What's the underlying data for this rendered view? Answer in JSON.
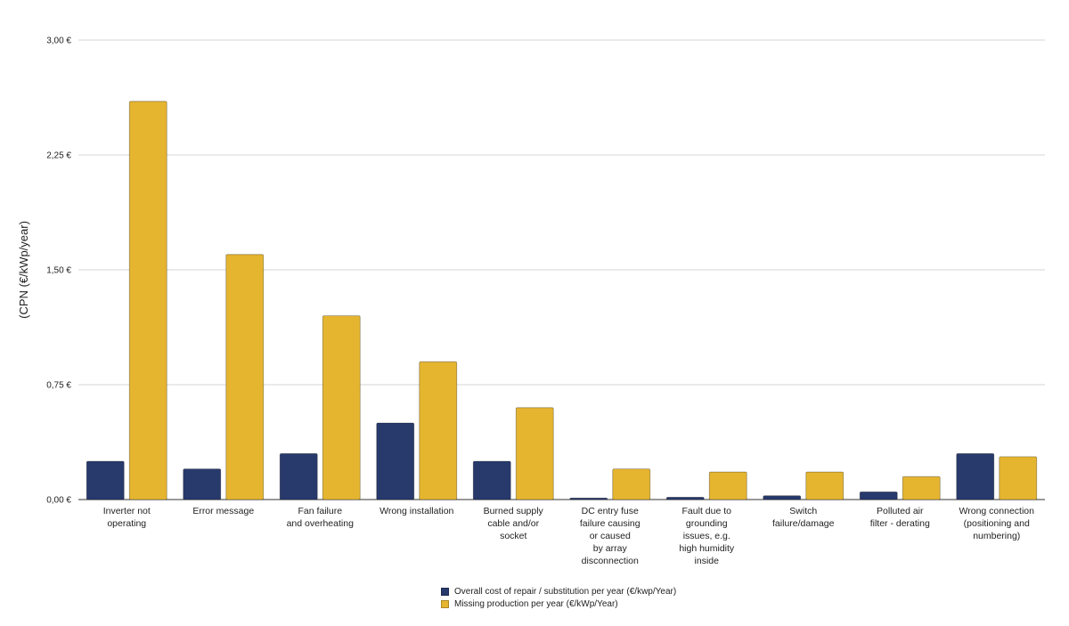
{
  "chart_data": {
    "type": "bar",
    "ylabel": "(CPN (€/kWp/year)",
    "xlabel": "",
    "ylim": [
      0,
      3.0
    ],
    "yticks": [
      "0,00 €",
      "0,75 €",
      "1,50 €",
      "2,25 €",
      "3,00 €"
    ],
    "ytick_values": [
      0,
      0.75,
      1.5,
      2.25,
      3.0
    ],
    "grid": true,
    "legend_position": "bottom-center",
    "categories": [
      [
        "Inverter not",
        "operating"
      ],
      [
        "Error message"
      ],
      [
        "Fan failure",
        "and overheating"
      ],
      [
        "Wrong installation"
      ],
      [
        "Burned supply",
        "cable and/or",
        "socket"
      ],
      [
        "DC entry fuse",
        "failure causing",
        "or caused",
        "by array",
        "disconnection"
      ],
      [
        "Fault due to",
        "grounding",
        "issues, e.g.",
        "high humidity",
        "inside"
      ],
      [
        "Switch",
        "failure/damage"
      ],
      [
        "Polluted air",
        "filter - derating"
      ],
      [
        "Wrong connection",
        "(positioning and",
        "numbering)"
      ]
    ],
    "series": [
      {
        "name": "Overall cost of repair / substitution per year (€/kwp/Year)",
        "color": "#283a6c",
        "values": [
          0.25,
          0.2,
          0.3,
          0.5,
          0.25,
          0.01,
          0.015,
          0.025,
          0.05,
          0.3
        ]
      },
      {
        "name": "Missing production per year (€/kWp/Year)",
        "color": "#e5b530",
        "values": [
          2.6,
          1.6,
          1.2,
          0.9,
          0.6,
          0.2,
          0.18,
          0.18,
          0.15,
          0.28
        ]
      }
    ]
  }
}
